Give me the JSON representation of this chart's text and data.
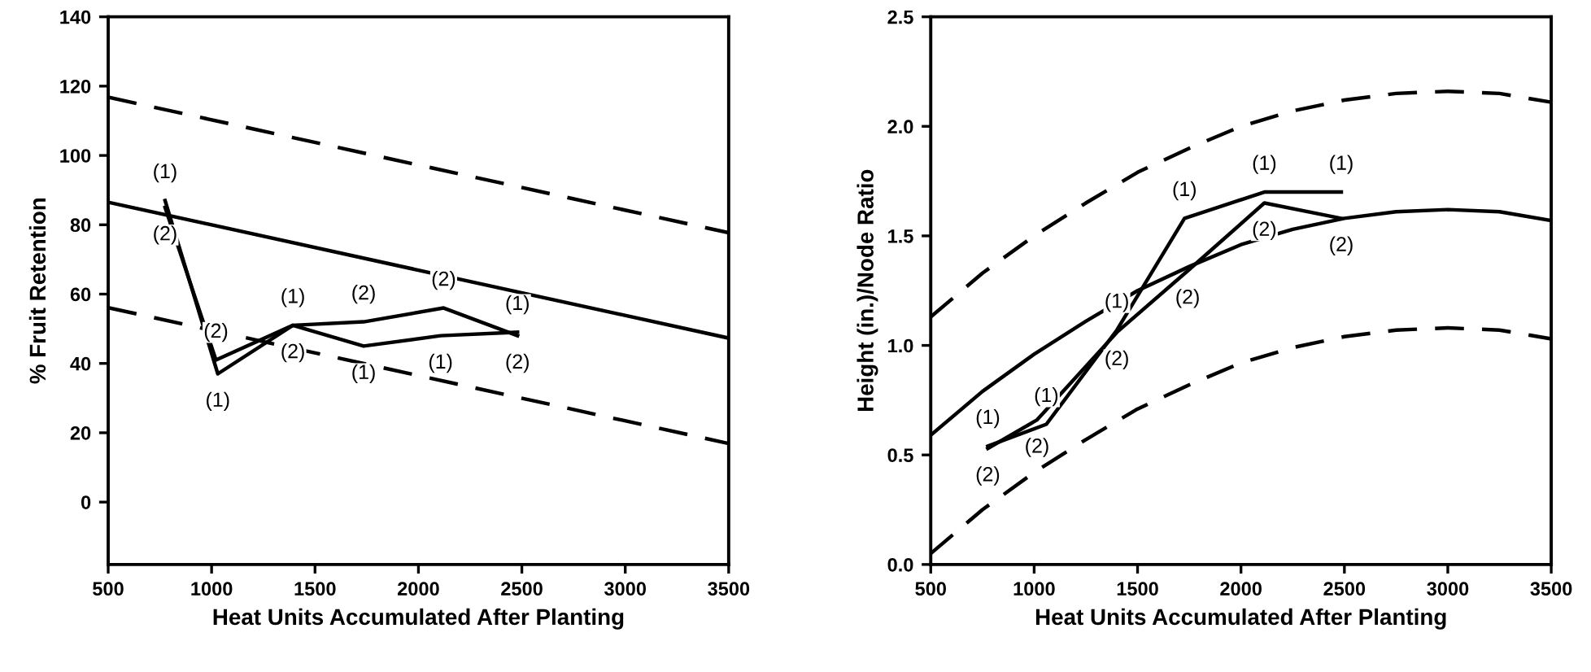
{
  "chart_data": [
    {
      "type": "line",
      "xlabel": "Heat Units Accumulated After Planting",
      "ylabel": "% Fruit Retention",
      "xlim": [
        500,
        3500
      ],
      "ylim": [
        -18,
        140
      ],
      "xticks": [
        500,
        1000,
        1500,
        2000,
        2500,
        3000,
        3500
      ],
      "yticks": [
        0,
        20,
        40,
        60,
        80,
        100,
        120,
        140
      ],
      "grid": false,
      "legend": false,
      "marker": "none",
      "series": [
        {
          "name": "(1)",
          "color": "#000000",
          "line_style": "solid",
          "x": [
            775,
            1030,
            1393,
            1735,
            2107,
            2479
          ],
          "values": [
            87,
            37,
            51,
            45,
            48,
            49
          ]
        },
        {
          "name": "(2)",
          "color": "#000000",
          "line_style": "solid",
          "x": [
            775,
            1021,
            1393,
            1735,
            2122,
            2479
          ],
          "values": [
            85,
            41,
            51,
            52,
            56,
            48
          ]
        },
        {
          "color": "#000000",
          "line_style": "solid",
          "x": [
            500,
            3500
          ],
          "values": [
            86.5,
            47.3
          ]
        },
        {
          "color": "#000000",
          "line_style": "dashed",
          "x": [
            500,
            3500
          ],
          "values": [
            116.8,
            77.7
          ]
        },
        {
          "color": "#000000",
          "line_style": "dashed",
          "x": [
            500,
            3500
          ],
          "values": [
            56.1,
            16.9
          ]
        }
      ]
    },
    {
      "type": "line",
      "xlabel": "Heat Units Accumulated After Planting",
      "ylabel": "Height (in.)/Node Ratio",
      "xlim": [
        500,
        3500
      ],
      "ylim": [
        0,
        2.5
      ],
      "xticks": [
        500,
        1000,
        1500,
        2000,
        2500,
        3000,
        3500
      ],
      "yticks": [
        {
          "value": 0,
          "label": "0.0"
        },
        {
          "value": 0.5,
          "label": "0.5"
        },
        {
          "value": 1,
          "label": "1.0"
        },
        {
          "value": 1.5,
          "label": "1.5"
        },
        {
          "value": 2,
          "label": "2.0"
        },
        {
          "value": 2.5,
          "label": "2.5"
        }
      ],
      "grid": false,
      "legend": false,
      "marker": "none",
      "series": [
        {
          "name": "(1)",
          "color": "#000000",
          "line_style": "solid",
          "x": [
            776,
            1059,
            1400,
            1727,
            2113,
            2485
          ],
          "values": [
            0.54,
            0.64,
            1.07,
            1.58,
            1.7,
            1.7
          ]
        },
        {
          "name": "(2)",
          "color": "#000000",
          "line_style": "solid",
          "x": [
            776,
            1014,
            1400,
            1742,
            2113,
            2485
          ],
          "values": [
            0.53,
            0.66,
            1.06,
            1.34,
            1.65,
            1.58
          ]
        },
        {
          "color": "#000000",
          "line_style": "solid",
          "x": [
            500,
            750,
            1000,
            1250,
            1500,
            1750,
            2000,
            2250,
            2500,
            2750,
            3000,
            3250,
            3500
          ],
          "values": [
            0.59,
            0.79,
            0.96,
            1.11,
            1.25,
            1.36,
            1.46,
            1.53,
            1.58,
            1.61,
            1.62,
            1.61,
            1.57
          ]
        },
        {
          "color": "#000000",
          "line_style": "dashed",
          "x": [
            500,
            750,
            1000,
            1250,
            1500,
            1750,
            2000,
            2250,
            2500,
            2750,
            3000,
            3250,
            3500
          ],
          "values": [
            1.13,
            1.33,
            1.5,
            1.65,
            1.79,
            1.9,
            2.0,
            2.07,
            2.12,
            2.15,
            2.16,
            2.15,
            2.11
          ]
        },
        {
          "color": "#000000",
          "line_style": "dashed",
          "x": [
            500,
            750,
            1000,
            1250,
            1500,
            1750,
            2000,
            2250,
            2500,
            2750,
            3000,
            3250,
            3500
          ],
          "values": [
            0.05,
            0.25,
            0.42,
            0.57,
            0.71,
            0.82,
            0.92,
            0.99,
            1.04,
            1.07,
            1.08,
            1.07,
            1.03
          ]
        }
      ]
    }
  ]
}
